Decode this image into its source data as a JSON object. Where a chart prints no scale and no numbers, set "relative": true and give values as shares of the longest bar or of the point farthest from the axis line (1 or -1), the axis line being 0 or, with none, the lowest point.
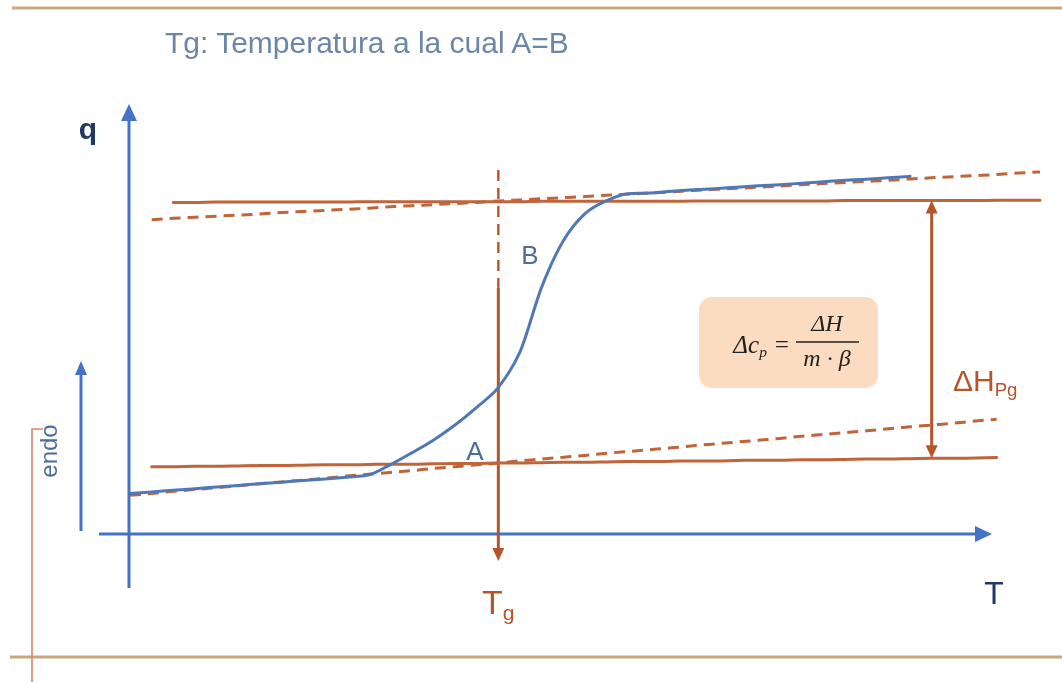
{
  "chart_data": {
    "type": "line",
    "title": "Tg: Temperatura a la cual A=B",
    "xlabel": "T",
    "ylabel": "q",
    "relative": true,
    "categories": [
      null,
      null,
      null,
      null,
      null,
      null,
      null,
      null,
      null,
      null,
      null,
      null,
      null,
      null,
      null,
      null,
      null,
      null,
      null,
      null,
      null,
      null,
      null,
      null,
      null,
      null,
      null,
      null,
      null,
      null,
      null,
      null,
      null,
      null,
      null,
      null,
      null,
      null,
      null,
      null,
      null,
      null,
      null
    ],
    "series": [
      {
        "color": "#4f78b5",
        "line_style": "solid",
        "values": [
          0.112,
          0.116,
          0.121,
          0.125,
          0.13,
          0.134,
          0.139,
          0.143,
          0.148,
          0.152,
          0.157,
          0.163,
          0.191,
          0.224,
          0.259,
          0.301,
          0.35,
          0.405,
          0.503,
          0.682,
          0.81,
          0.885,
          0.921,
          0.94,
          0.942,
          0.947,
          0.951,
          0.954,
          0.958,
          0.962,
          0.965,
          0.969,
          0.973,
          0.977,
          0.98,
          0.984,
          0.988,
          null,
          null,
          null,
          null,
          null,
          null
        ]
      },
      {
        "color": "#c0643a",
        "line_style": "solid",
        "values": [
          null,
          null,
          0.916,
          0.916,
          0.917,
          0.917,
          0.917,
          0.917,
          0.917,
          0.917,
          0.917,
          0.918,
          0.918,
          0.918,
          0.918,
          0.918,
          0.918,
          0.918,
          0.918,
          0.919,
          0.919,
          0.919,
          0.919,
          0.919,
          0.919,
          0.919,
          0.92,
          0.92,
          0.92,
          0.92,
          0.92,
          0.92,
          0.92,
          0.921,
          0.921,
          0.921,
          0.921,
          0.921,
          0.921,
          0.921,
          0.922,
          0.922,
          0.922
        ]
      },
      {
        "color": "#c0643a",
        "line_style": "dashed",
        "values": [
          null,
          0.868,
          0.872,
          0.875,
          0.878,
          0.881,
          0.884,
          0.888,
          0.891,
          0.894,
          0.897,
          0.9,
          0.904,
          0.907,
          0.91,
          0.913,
          0.916,
          0.92,
          0.923,
          0.926,
          0.929,
          0.932,
          0.936,
          0.939,
          0.942,
          0.945,
          0.949,
          0.952,
          0.955,
          0.958,
          0.961,
          0.965,
          0.968,
          0.971,
          0.974,
          0.977,
          0.981,
          0.984,
          0.987,
          0.99,
          0.993,
          0.997,
          1.0
        ]
      },
      {
        "color": "#c0643a",
        "line_style": "solid",
        "values": [
          null,
          0.186,
          0.186,
          0.187,
          0.187,
          0.188,
          0.189,
          0.189,
          0.19,
          0.191,
          0.191,
          0.192,
          0.193,
          0.193,
          0.194,
          0.195,
          0.195,
          0.196,
          0.196,
          0.197,
          0.198,
          0.198,
          0.199,
          0.2,
          0.2,
          0.201,
          0.202,
          0.202,
          0.203,
          0.204,
          0.204,
          0.205,
          0.205,
          0.206,
          0.207,
          0.207,
          0.208,
          0.209,
          0.209,
          0.21,
          0.211,
          null,
          null
        ]
      },
      {
        "color": "#c0643a",
        "line_style": "dashed",
        "values": [
          0.107,
          0.112,
          0.118,
          0.123,
          0.128,
          0.133,
          0.139,
          0.144,
          0.149,
          0.154,
          0.16,
          0.165,
          0.17,
          0.175,
          0.181,
          0.186,
          0.191,
          0.196,
          0.202,
          0.207,
          0.212,
          0.217,
          0.223,
          0.228,
          0.233,
          0.238,
          0.244,
          0.249,
          0.254,
          0.259,
          0.264,
          0.27,
          0.275,
          0.28,
          0.285,
          0.291,
          0.296,
          0.301,
          0.306,
          0.312,
          0.317,
          null,
          null
        ]
      }
    ],
    "annotations": [
      "A",
      "B",
      "ΔH$_{Pg}$",
      "Δc$_{p}$ =",
      "ΔH",
      "m · β",
      "endo",
      "T$_{g}$"
    ]
  }
}
